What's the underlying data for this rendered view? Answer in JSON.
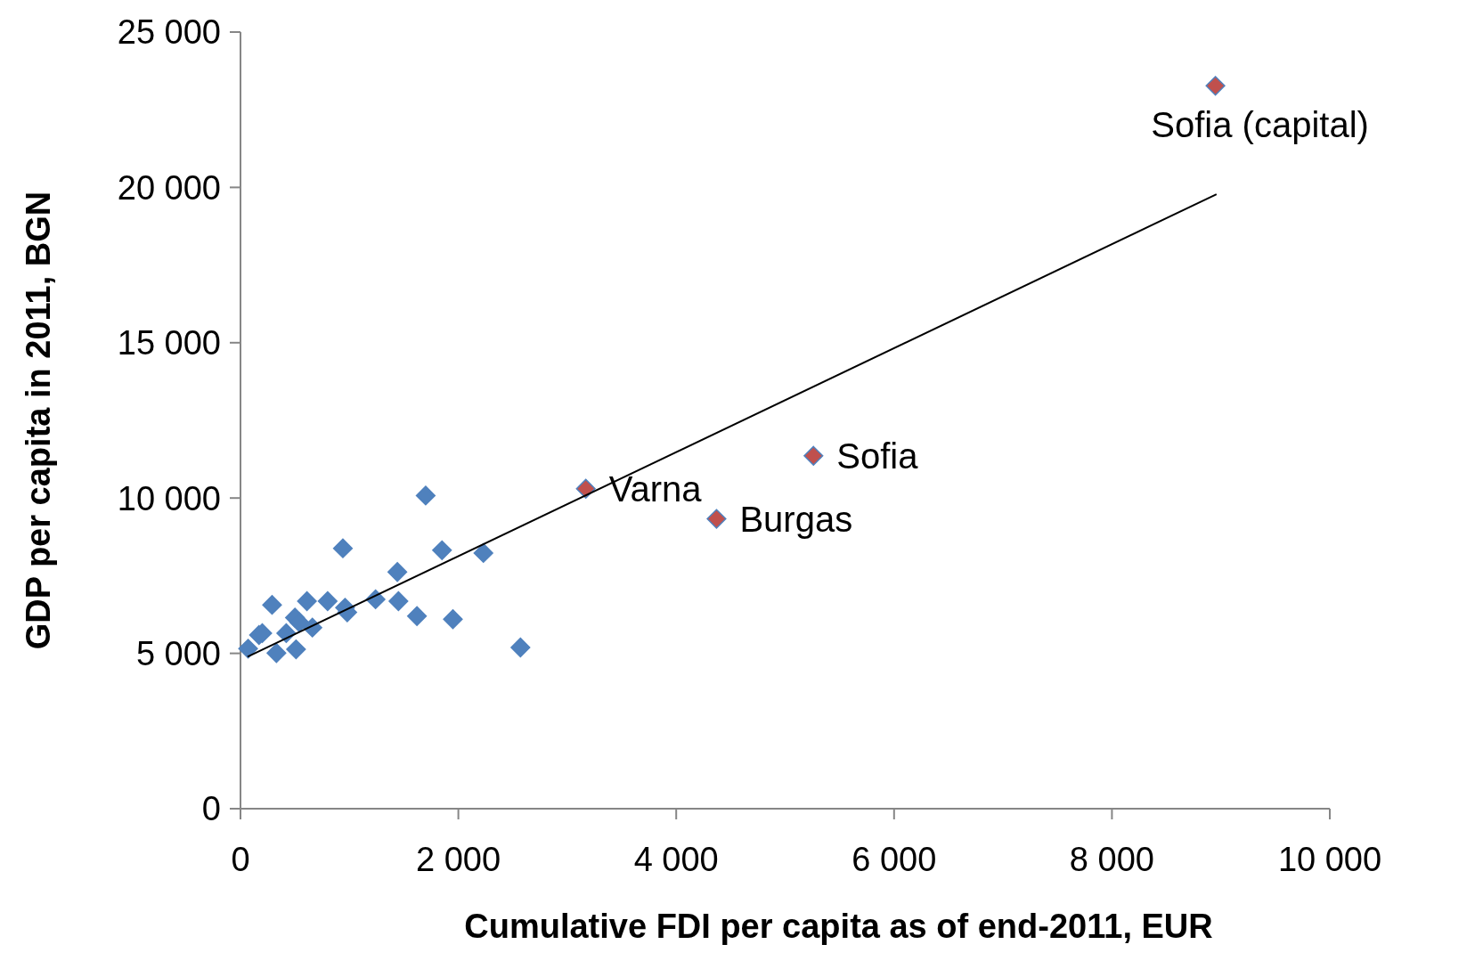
{
  "chart_data": {
    "type": "scatter",
    "xlabel": "Cumulative FDI per capita as of end-2011, EUR",
    "ylabel": "GDP per capita in 2011, BGN",
    "xlim": [
      0,
      10000
    ],
    "ylim": [
      0,
      25000
    ],
    "xticks": [
      0,
      {
        "value": 2000,
        "label": "2 000"
      },
      {
        "value": 4000,
        "label": "4 000"
      },
      {
        "value": 6000,
        "label": "6 000"
      },
      {
        "value": 8000,
        "label": "8 000"
      },
      {
        "value": 10000,
        "label": "10 000"
      }
    ],
    "yticks": [
      0,
      {
        "value": 5000,
        "label": "5 000"
      },
      {
        "value": 10000,
        "label": "10 000"
      },
      {
        "value": 15000,
        "label": "15 000"
      },
      {
        "value": 20000,
        "label": "20 000"
      },
      {
        "value": 25000,
        "label": "25 000"
      }
    ],
    "grid": false,
    "series": [
      {
        "color": "#4f81bd",
        "marker": "diamond",
        "x": [
          70,
          170,
          200,
          290,
          330,
          420,
          500,
          540,
          510,
          610,
          660,
          800,
          940,
          960,
          980,
          1240,
          1440,
          1450,
          1620,
          1700,
          1850,
          1950,
          2230,
          2570
        ],
        "values": [
          5150,
          5590,
          5650,
          6560,
          5010,
          5650,
          6150,
          6000,
          5130,
          6680,
          5830,
          6680,
          8380,
          6470,
          6320,
          6740,
          7620,
          6680,
          6200,
          10080,
          8320,
          6100,
          8230,
          5190
        ]
      },
      {
        "color": "#c0504d",
        "marker": "diamond",
        "x": [
          3170,
          4370,
          5260,
          8950
        ],
        "values": [
          10300,
          9330,
          11360,
          23270
        ]
      },
      {
        "type": "line",
        "color": "#000000",
        "x": [
          65,
          8960
        ],
        "values": [
          4890,
          19780
        ]
      }
    ],
    "annotations": [
      {
        "text": "Varna",
        "x": 3170,
        "y": 10300
      },
      {
        "text": "Burgas",
        "x": 4370,
        "y": 9330
      },
      {
        "text": "Sofia",
        "x": 5260,
        "y": 11360
      },
      {
        "text": "Sofia (capital)",
        "x": 8950,
        "y": 23270
      }
    ]
  }
}
